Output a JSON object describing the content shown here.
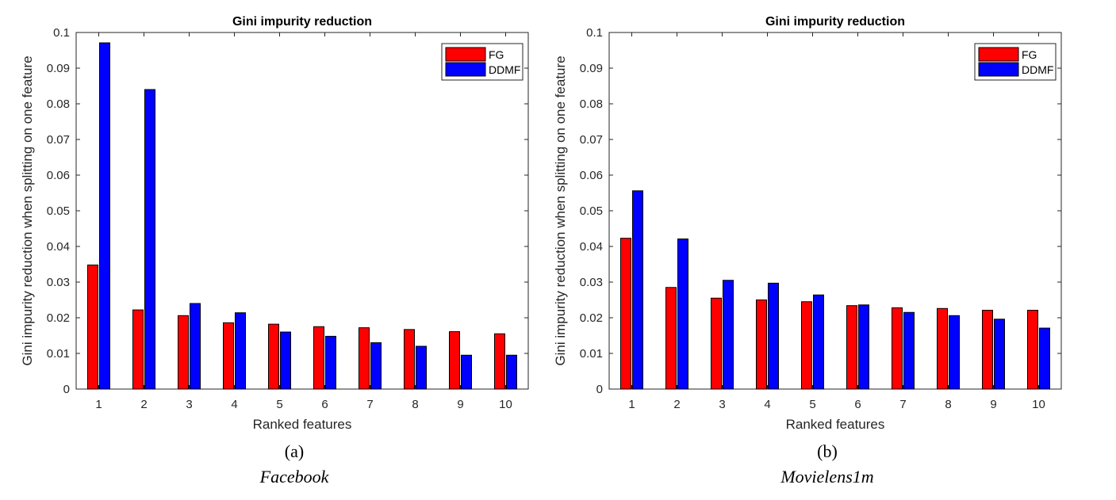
{
  "chart_data": [
    {
      "type": "bar",
      "title": "Gini impurity reduction",
      "xlabel": "Ranked features",
      "ylabel": "Gini impurity reduction when splitting on one feature",
      "ylim": [
        0,
        0.1
      ],
      "yticks": [
        "0",
        "0.01",
        "0.02",
        "0.03",
        "0.04",
        "0.05",
        "0.06",
        "0.07",
        "0.08",
        "0.09",
        "0.1"
      ],
      "categories": [
        "1",
        "2",
        "3",
        "4",
        "5",
        "6",
        "7",
        "8",
        "9",
        "10"
      ],
      "series": [
        {
          "name": "FG",
          "color": "#ff0000",
          "values": [
            0.0348,
            0.0222,
            0.0206,
            0.0186,
            0.0182,
            0.0175,
            0.0172,
            0.0167,
            0.0161,
            0.0155
          ]
        },
        {
          "name": "DDMF",
          "color": "#0000ff",
          "values": [
            0.0971,
            0.084,
            0.024,
            0.0214,
            0.016,
            0.0148,
            0.013,
            0.012,
            0.0095,
            0.0095
          ]
        }
      ],
      "legend": "top-right",
      "grid": false,
      "caption_label": "(a)",
      "caption_name": "Facebook"
    },
    {
      "type": "bar",
      "title": "Gini impurity reduction",
      "xlabel": "Ranked features",
      "ylabel": "Gini impurity reduction when splitting on one feature",
      "ylim": [
        0,
        0.1
      ],
      "yticks": [
        "0",
        "0.01",
        "0.02",
        "0.03",
        "0.04",
        "0.05",
        "0.06",
        "0.07",
        "0.08",
        "0.09",
        "0.1"
      ],
      "categories": [
        "1",
        "2",
        "3",
        "4",
        "5",
        "6",
        "7",
        "8",
        "9",
        "10"
      ],
      "series": [
        {
          "name": "FG",
          "color": "#ff0000",
          "values": [
            0.0423,
            0.0285,
            0.0255,
            0.025,
            0.0245,
            0.0234,
            0.0228,
            0.0226,
            0.0221,
            0.0221
          ]
        },
        {
          "name": "DDMF",
          "color": "#0000ff",
          "values": [
            0.0556,
            0.0421,
            0.0305,
            0.0297,
            0.0264,
            0.0236,
            0.0215,
            0.0206,
            0.0196,
            0.0171
          ]
        }
      ],
      "legend": "top-right",
      "grid": false,
      "caption_label": "(b)",
      "caption_name": "Movielens1m"
    }
  ]
}
